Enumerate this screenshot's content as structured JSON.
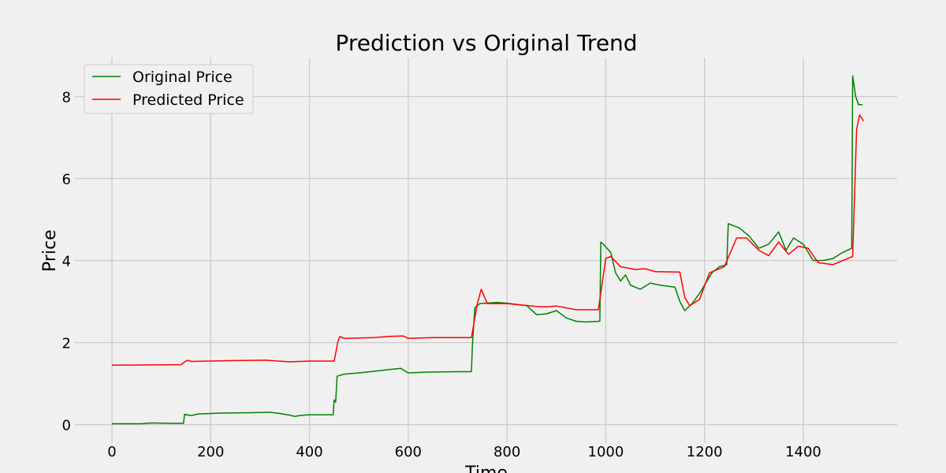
{
  "chart_data": {
    "type": "line",
    "title": "Prediction vs Original Trend",
    "xlabel": "Time",
    "ylabel": "Price",
    "xlim": [
      -75,
      1590
    ],
    "ylim": [
      -0.45,
      8.95
    ],
    "xticks": [
      0,
      200,
      400,
      600,
      800,
      1000,
      1200,
      1400
    ],
    "yticks": [
      0,
      2,
      4,
      6,
      8
    ],
    "grid": true,
    "legend_position": "top-left",
    "series": [
      {
        "name": "Original Price",
        "color": "#008000",
        "points": [
          [
            0,
            0.02
          ],
          [
            60,
            0.02
          ],
          [
            80,
            0.04
          ],
          [
            120,
            0.03
          ],
          [
            145,
            0.03
          ],
          [
            147,
            0.25
          ],
          [
            160,
            0.22
          ],
          [
            175,
            0.26
          ],
          [
            220,
            0.28
          ],
          [
            280,
            0.29
          ],
          [
            320,
            0.3
          ],
          [
            340,
            0.27
          ],
          [
            360,
            0.23
          ],
          [
            370,
            0.2
          ],
          [
            380,
            0.22
          ],
          [
            400,
            0.24
          ],
          [
            448,
            0.24
          ],
          [
            450,
            0.6
          ],
          [
            453,
            0.55
          ],
          [
            456,
            1.18
          ],
          [
            470,
            1.23
          ],
          [
            500,
            1.26
          ],
          [
            530,
            1.3
          ],
          [
            560,
            1.34
          ],
          [
            585,
            1.37
          ],
          [
            600,
            1.26
          ],
          [
            640,
            1.28
          ],
          [
            700,
            1.29
          ],
          [
            728,
            1.29
          ],
          [
            730,
            1.95
          ],
          [
            735,
            2.85
          ],
          [
            745,
            2.95
          ],
          [
            780,
            2.98
          ],
          [
            800,
            2.96
          ],
          [
            840,
            2.9
          ],
          [
            860,
            2.68
          ],
          [
            880,
            2.7
          ],
          [
            900,
            2.78
          ],
          [
            920,
            2.6
          ],
          [
            940,
            2.52
          ],
          [
            960,
            2.5
          ],
          [
            988,
            2.52
          ],
          [
            990,
            4.45
          ],
          [
            995,
            4.4
          ],
          [
            1010,
            4.2
          ],
          [
            1020,
            3.7
          ],
          [
            1030,
            3.5
          ],
          [
            1040,
            3.65
          ],
          [
            1050,
            3.4
          ],
          [
            1070,
            3.3
          ],
          [
            1090,
            3.45
          ],
          [
            1110,
            3.4
          ],
          [
            1140,
            3.35
          ],
          [
            1150,
            3.0
          ],
          [
            1160,
            2.78
          ],
          [
            1175,
            2.95
          ],
          [
            1190,
            3.2
          ],
          [
            1200,
            3.4
          ],
          [
            1215,
            3.7
          ],
          [
            1230,
            3.85
          ],
          [
            1245,
            3.9
          ],
          [
            1248,
            4.9
          ],
          [
            1270,
            4.8
          ],
          [
            1290,
            4.6
          ],
          [
            1310,
            4.3
          ],
          [
            1330,
            4.4
          ],
          [
            1350,
            4.7
          ],
          [
            1365,
            4.25
          ],
          [
            1380,
            4.55
          ],
          [
            1400,
            4.4
          ],
          [
            1420,
            4.0
          ],
          [
            1440,
            4.0
          ],
          [
            1460,
            4.05
          ],
          [
            1480,
            4.2
          ],
          [
            1498,
            4.3
          ],
          [
            1500,
            8.5
          ],
          [
            1506,
            8.0
          ],
          [
            1512,
            7.8
          ],
          [
            1520,
            7.8
          ]
        ]
      },
      {
        "name": "Predicted Price",
        "color": "#ff0000",
        "points": [
          [
            0,
            1.45
          ],
          [
            140,
            1.46
          ],
          [
            150,
            1.55
          ],
          [
            155,
            1.57
          ],
          [
            160,
            1.54
          ],
          [
            250,
            1.56
          ],
          [
            310,
            1.57
          ],
          [
            360,
            1.53
          ],
          [
            400,
            1.55
          ],
          [
            450,
            1.55
          ],
          [
            458,
            2.05
          ],
          [
            462,
            2.15
          ],
          [
            470,
            2.1
          ],
          [
            530,
            2.12
          ],
          [
            560,
            2.15
          ],
          [
            590,
            2.16
          ],
          [
            600,
            2.1
          ],
          [
            650,
            2.12
          ],
          [
            728,
            2.12
          ],
          [
            740,
            2.95
          ],
          [
            748,
            3.3
          ],
          [
            760,
            2.95
          ],
          [
            800,
            2.95
          ],
          [
            860,
            2.88
          ],
          [
            880,
            2.87
          ],
          [
            900,
            2.89
          ],
          [
            940,
            2.8
          ],
          [
            985,
            2.8
          ],
          [
            1000,
            4.05
          ],
          [
            1010,
            4.1
          ],
          [
            1030,
            3.85
          ],
          [
            1060,
            3.78
          ],
          [
            1080,
            3.8
          ],
          [
            1100,
            3.73
          ],
          [
            1150,
            3.72
          ],
          [
            1160,
            3.1
          ],
          [
            1170,
            2.9
          ],
          [
            1190,
            3.05
          ],
          [
            1210,
            3.7
          ],
          [
            1240,
            3.85
          ],
          [
            1265,
            4.55
          ],
          [
            1285,
            4.55
          ],
          [
            1310,
            4.25
          ],
          [
            1330,
            4.12
          ],
          [
            1350,
            4.45
          ],
          [
            1370,
            4.15
          ],
          [
            1390,
            4.35
          ],
          [
            1410,
            4.3
          ],
          [
            1430,
            3.95
          ],
          [
            1460,
            3.9
          ],
          [
            1490,
            4.05
          ],
          [
            1500,
            4.1
          ],
          [
            1508,
            7.2
          ],
          [
            1514,
            7.55
          ],
          [
            1522,
            7.4
          ]
        ]
      }
    ]
  }
}
